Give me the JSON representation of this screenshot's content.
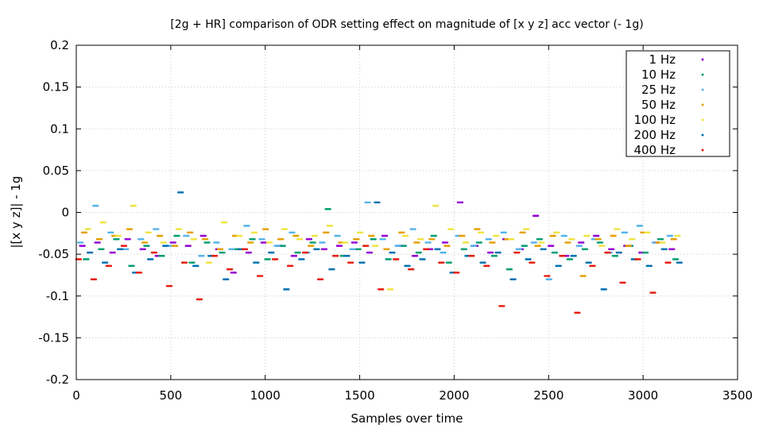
{
  "chart_data": {
    "type": "scatter",
    "title": "[2g + HR] comparison of ODR setting effect on magnitude of [x y z] acc vector (- 1g)",
    "xlabel": "Samples over time",
    "ylabel": "|[x y z]| - 1g",
    "xlim": [
      0,
      3500
    ],
    "ylim": [
      -0.2,
      0.2
    ],
    "xticks": [
      "0",
      "500",
      "1000",
      "1500",
      "2000",
      "2500",
      "3000",
      "3500"
    ],
    "yticks": [
      "0.2",
      "0.15",
      "0.1",
      "0.05",
      "0",
      "-0.05",
      "-0.1",
      "-0.15",
      "-0.2"
    ],
    "grid": true,
    "legend_position": "top-right",
    "x_step": 80,
    "series": [
      {
        "name": "1 Hz",
        "color": "#9400d3",
        "x_offset": 20,
        "values": [
          -0.04,
          -0.036,
          -0.048,
          -0.032,
          -0.044,
          -0.052,
          -0.036,
          -0.04,
          -0.028,
          -0.044,
          -0.072,
          -0.048,
          -0.036,
          -0.04,
          -0.052,
          -0.032,
          -0.044,
          -0.04,
          -0.036,
          -0.048,
          -0.028,
          -0.04,
          -0.052,
          -0.044,
          -0.036,
          0.012,
          -0.04,
          -0.048,
          -0.032,
          -0.044,
          -0.004,
          -0.04,
          -0.052,
          -0.036,
          -0.028,
          -0.044,
          -0.04,
          -0.048,
          -0.036,
          -0.044
        ]
      },
      {
        "name": "10 Hz",
        "color": "#009e73",
        "x_offset": 40,
        "values": [
          -0.056,
          -0.044,
          -0.032,
          -0.064,
          -0.04,
          -0.052,
          -0.028,
          -0.06,
          -0.036,
          -0.048,
          -0.044,
          -0.032,
          -0.056,
          -0.04,
          -0.048,
          -0.036,
          0.004,
          -0.052,
          -0.044,
          -0.032,
          -0.056,
          -0.04,
          -0.048,
          -0.028,
          -0.06,
          -0.044,
          -0.036,
          -0.052,
          -0.068,
          -0.04,
          -0.032,
          -0.048,
          -0.056,
          -0.044,
          -0.036,
          -0.052,
          -0.04,
          -0.048,
          -0.032,
          -0.056
        ]
      },
      {
        "name": "25 Hz",
        "color": "#56b4e9",
        "x_offset": 10,
        "values": [
          -0.036,
          0.008,
          -0.024,
          -0.044,
          -0.032,
          -0.02,
          -0.04,
          -0.028,
          -0.052,
          -0.036,
          -0.044,
          -0.016,
          -0.032,
          -0.04,
          -0.024,
          -0.048,
          -0.036,
          -0.028,
          -0.044,
          0.012,
          -0.032,
          -0.04,
          -0.02,
          -0.036,
          -0.048,
          -0.028,
          -0.04,
          -0.032,
          -0.024,
          -0.044,
          -0.036,
          -0.08,
          -0.028,
          -0.04,
          -0.032,
          -0.048,
          -0.024,
          -0.016,
          -0.036,
          -0.028
        ]
      },
      {
        "name": "50 Hz",
        "color": "#e69f00",
        "x_offset": 30,
        "values": [
          -0.024,
          -0.032,
          -0.028,
          -0.02,
          -0.036,
          -0.028,
          -0.04,
          -0.024,
          -0.032,
          -0.044,
          -0.028,
          -0.036,
          -0.02,
          -0.032,
          -0.028,
          -0.04,
          -0.024,
          -0.036,
          -0.032,
          -0.028,
          -0.044,
          -0.024,
          -0.036,
          -0.032,
          -0.04,
          -0.028,
          -0.02,
          -0.036,
          -0.032,
          -0.024,
          -0.04,
          -0.028,
          -0.036,
          -0.076,
          -0.032,
          -0.028,
          -0.04,
          -0.024,
          -0.036,
          -0.032
        ]
      },
      {
        "name": "100 Hz",
        "color": "#f0e442",
        "x_offset": 50,
        "values": [
          -0.02,
          -0.012,
          -0.028,
          0.008,
          -0.024,
          -0.036,
          -0.02,
          -0.032,
          -0.06,
          -0.012,
          -0.028,
          -0.024,
          -0.036,
          -0.02,
          -0.032,
          -0.028,
          -0.016,
          -0.036,
          -0.024,
          -0.04,
          -0.092,
          -0.028,
          -0.032,
          0.008,
          -0.02,
          -0.036,
          -0.024,
          -0.028,
          -0.032,
          -0.02,
          -0.036,
          -0.024,
          -0.032,
          -0.028,
          -0.04,
          -0.02,
          -0.032,
          -0.024,
          -0.036,
          -0.028
        ]
      },
      {
        "name": "200 Hz",
        "color": "#0072b2",
        "x_offset": 60,
        "values": [
          -0.048,
          -0.06,
          -0.044,
          -0.072,
          -0.056,
          -0.04,
          0.024,
          -0.064,
          -0.052,
          -0.08,
          -0.044,
          -0.06,
          -0.048,
          -0.092,
          -0.056,
          -0.044,
          -0.068,
          -0.052,
          -0.06,
          0.012,
          -0.048,
          -0.064,
          -0.056,
          -0.044,
          -0.072,
          -0.052,
          -0.06,
          -0.048,
          -0.08,
          -0.056,
          -0.044,
          -0.064,
          -0.052,
          -0.06,
          -0.092,
          -0.048,
          -0.056,
          -0.064,
          -0.044,
          -0.06
        ]
      },
      {
        "name": "400 Hz",
        "color": "#e51e10",
        "x_offset": 0,
        "values": [
          -0.056,
          -0.08,
          -0.064,
          -0.04,
          -0.072,
          -0.048,
          -0.088,
          -0.06,
          -0.104,
          -0.052,
          -0.068,
          -0.044,
          -0.076,
          -0.056,
          -0.064,
          -0.048,
          -0.08,
          -0.052,
          -0.06,
          -0.04,
          -0.092,
          -0.056,
          -0.068,
          -0.044,
          -0.06,
          -0.072,
          -0.052,
          -0.064,
          -0.112,
          -0.048,
          -0.06,
          -0.076,
          -0.052,
          -0.12,
          -0.064,
          -0.048,
          -0.084,
          -0.056,
          -0.096,
          -0.06
        ]
      }
    ]
  }
}
